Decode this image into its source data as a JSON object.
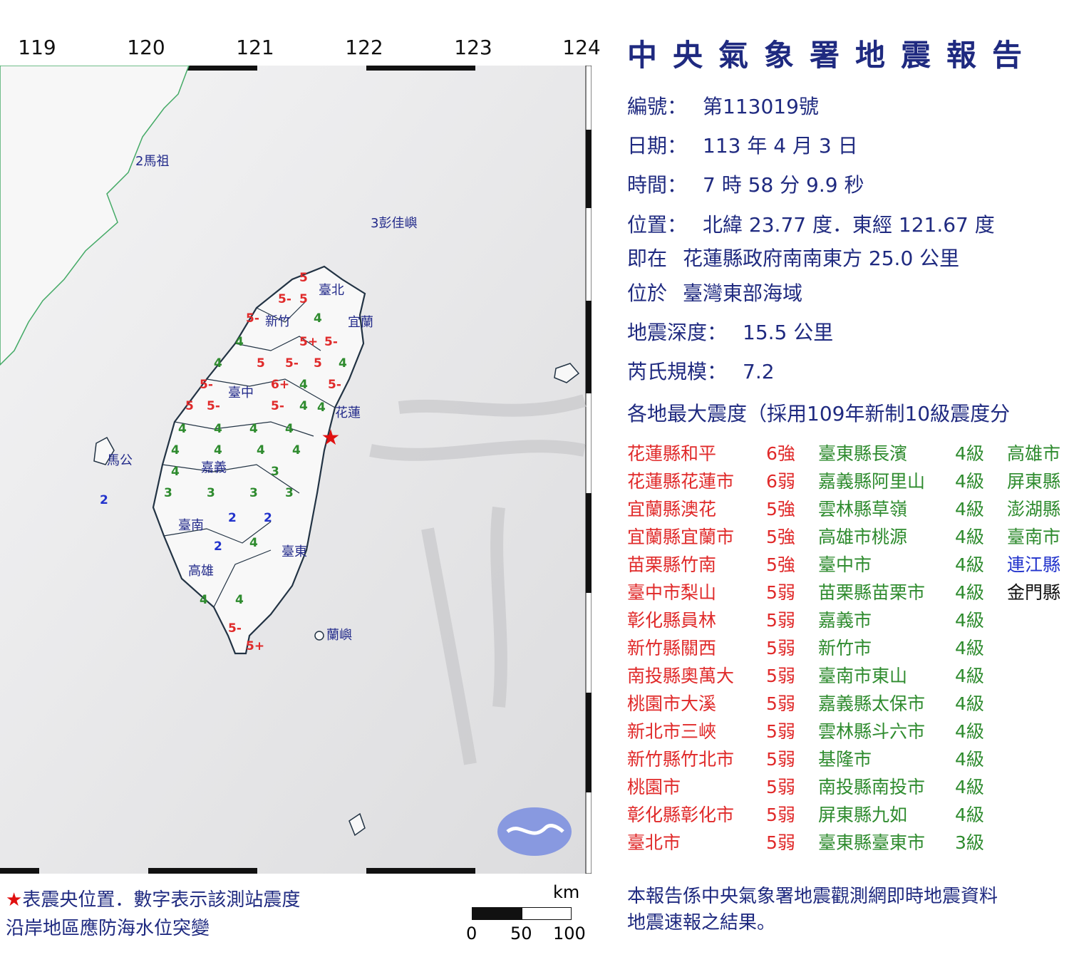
{
  "report_title": "中央氣象署地震報告",
  "longitude_ticks": [
    "119",
    "120",
    "121",
    "122",
    "123",
    "124"
  ],
  "info": {
    "number_label": "編號：",
    "number": "第113019號",
    "date_label": "日期：",
    "date": "113 年 4 月 3 日",
    "time_label": "時間：",
    "time": "7 時 58 分 9.9 秒",
    "location_label": "位置：",
    "location": "北緯 23.77 度．東經 121.67 度",
    "relative_label": "即在",
    "relative": "花蓮縣政府南南東方 25.0 公里",
    "region_label": "位於",
    "region": "臺灣東部海域",
    "depth_label": "地震深度：",
    "depth": "15.5 公里",
    "magnitude_label": "芮氏規模：",
    "magnitude": "7.2"
  },
  "intensity_heading": "各地最大震度（採用109年新制10級震度分",
  "colors": {
    "title": "#1f2a80",
    "intensity_5_6": "#e02a2a",
    "intensity_3_4": "#2e8b2e",
    "intensity_2": "#2233cc",
    "intensity_1": "#111111",
    "epicenter": "#e01010"
  },
  "col1": [
    {
      "place": "花蓮縣和平",
      "level": "6強"
    },
    {
      "place": "花蓮縣花蓮市",
      "level": "6弱"
    },
    {
      "place": "宜蘭縣澳花",
      "level": "5強"
    },
    {
      "place": "宜蘭縣宜蘭市",
      "level": "5強"
    },
    {
      "place": "苗栗縣竹南",
      "level": "5強"
    },
    {
      "place": "臺中市梨山",
      "level": "5弱"
    },
    {
      "place": "彰化縣員林",
      "level": "5弱"
    },
    {
      "place": "新竹縣關西",
      "level": "5弱"
    },
    {
      "place": "南投縣奧萬大",
      "level": "5弱"
    },
    {
      "place": "桃園市大溪",
      "level": "5弱"
    },
    {
      "place": "新北市三峽",
      "level": "5弱"
    },
    {
      "place": "新竹縣竹北市",
      "level": "5弱"
    },
    {
      "place": "桃園市",
      "level": "5弱"
    },
    {
      "place": "彰化縣彰化市",
      "level": "5弱"
    },
    {
      "place": "臺北市",
      "level": "5弱"
    }
  ],
  "col2": [
    {
      "place": "臺東縣長濱",
      "level": "4級"
    },
    {
      "place": "嘉義縣阿里山",
      "level": "4級"
    },
    {
      "place": "雲林縣草嶺",
      "level": "4級"
    },
    {
      "place": "高雄市桃源",
      "level": "4級"
    },
    {
      "place": "臺中市",
      "level": "4級"
    },
    {
      "place": "苗栗縣苗栗市",
      "level": "4級"
    },
    {
      "place": "嘉義市",
      "level": "4級"
    },
    {
      "place": "新竹市",
      "level": "4級"
    },
    {
      "place": "臺南市東山",
      "level": "4級"
    },
    {
      "place": "嘉義縣太保市",
      "level": "4級"
    },
    {
      "place": "雲林縣斗六市",
      "level": "4級"
    },
    {
      "place": "基隆市",
      "level": "4級"
    },
    {
      "place": "南投縣南投市",
      "level": "4級"
    },
    {
      "place": "屏東縣九如",
      "level": "4級"
    },
    {
      "place": "臺東縣臺東市",
      "level": "3級"
    }
  ],
  "col3": [
    {
      "place": "高雄市",
      "color": "green"
    },
    {
      "place": "屏東縣",
      "color": "green"
    },
    {
      "place": "澎湖縣",
      "color": "green"
    },
    {
      "place": "臺南市",
      "color": "green"
    },
    {
      "place": "連江縣",
      "color": "blue"
    },
    {
      "place": "金門縣",
      "color": "black"
    }
  ],
  "map_labels": {
    "matsu": "2馬祖",
    "pengjia": "3彭佳嶼",
    "taipei": "臺北",
    "yilan": "宜蘭",
    "hsinchu": "新竹",
    "taichung": "臺中",
    "hualien": "花蓮",
    "magong": "馬公",
    "chiayi": "嘉義",
    "tainan": "臺南",
    "kaohsiung": "高雄",
    "taitung": "臺東",
    "lanyu": "蘭嶼"
  },
  "stations": [
    "5",
    "5-",
    "5",
    "5-",
    "4",
    "4",
    "5+",
    "5-",
    "4",
    "5",
    "5-",
    "5",
    "4",
    "5-",
    "6+",
    "4",
    "5-",
    "5",
    "5-",
    "5-",
    "4",
    "4",
    "4",
    "4",
    "4",
    "4",
    "4",
    "4",
    "4",
    "4",
    "3",
    "3",
    "3",
    "3",
    "3",
    "2",
    "2",
    "2",
    "2",
    "4",
    "4",
    "4",
    "5-",
    "5+",
    "4"
  ],
  "legend": {
    "line1": "表震央位置．數字表示該測站震度",
    "epicenter_symbol": "★",
    "line2": "沿岸地區應防海水位突變"
  },
  "scale": {
    "unit": "km",
    "ticks": [
      "0",
      "50",
      "100"
    ]
  },
  "footnote": {
    "line1": "本報告係中央氣象署地震觀測網即時地震資料",
    "line2": "地震速報之結果。"
  }
}
